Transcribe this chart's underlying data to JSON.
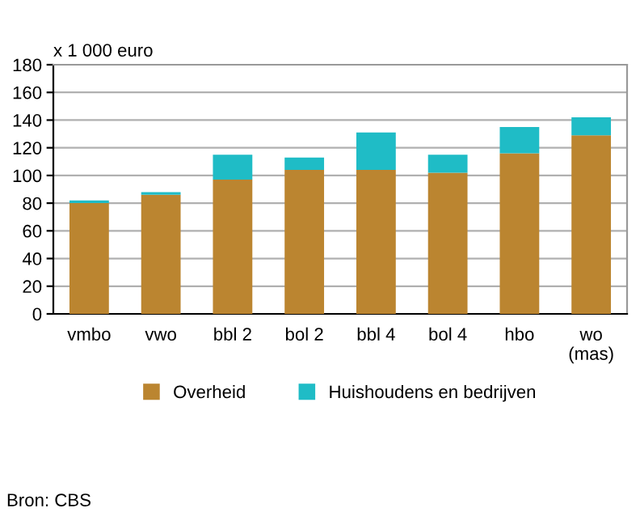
{
  "chart_data": {
    "type": "bar",
    "stacked": true,
    "ylabel": "x 1 000 euro",
    "categories": [
      "vmbo",
      "vwo",
      "bbl 2",
      "bol 2",
      "bbl 4",
      "bol 4",
      "hbo",
      "wo\n(mas)"
    ],
    "series": [
      {
        "name": "Overheid",
        "color": "#bb8530",
        "values": [
          80,
          86,
          97,
          104,
          104,
          102,
          116,
          129
        ]
      },
      {
        "name": "Huishoudens en bedrijven",
        "color": "#1fbcc6",
        "values": [
          2,
          2,
          18,
          9,
          27,
          13,
          19,
          13
        ]
      }
    ],
    "ylim": [
      0,
      180
    ],
    "yticks": [
      0,
      20,
      40,
      60,
      80,
      100,
      120,
      140,
      160,
      180
    ],
    "grid": "y",
    "legend": "bottom",
    "annotations": [
      "Bron: CBS"
    ]
  }
}
